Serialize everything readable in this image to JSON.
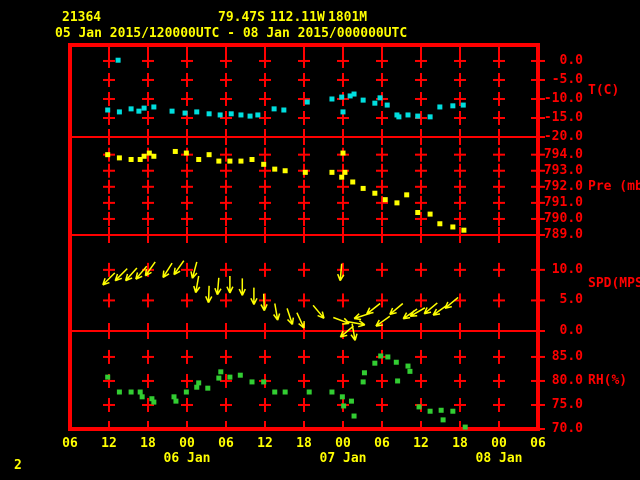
{
  "header": {
    "station_id": "21364",
    "latitude": "79.47S",
    "longitude": "112.11W",
    "elevation": "1801M",
    "time_range": "05 Jan 2015/120000UTC - 08 Jan 2015/000000UTC"
  },
  "page_number": "2",
  "colors": {
    "background": "#000000",
    "frame": "#ff0000",
    "axis_text": "#ff0000",
    "header_text": "#ffff00",
    "temperature": "#00dede",
    "pressure": "#ffff00",
    "wind": "#ffff00",
    "humidity": "#32cd32"
  },
  "chart_data": {
    "type": "scatter",
    "title": "Station time series 05 Jan 2015 12UTC - 08 Jan 2015 00UTC",
    "x_axis": {
      "span_hours": 72,
      "tick_interval_hours": 6,
      "hour_tick_labels": [
        "06",
        "12",
        "18",
        "00",
        "06",
        "12",
        "18",
        "00",
        "06",
        "12",
        "18",
        "00",
        "06"
      ],
      "day_labels": [
        {
          "text": "06 Jan",
          "tick": 3
        },
        {
          "text": "07 Jan",
          "tick": 7
        },
        {
          "text": "08 Jan",
          "tick": 11
        }
      ]
    },
    "panels": [
      {
        "id": "temperature",
        "unit_label": "T(C)",
        "marker_color": "#00dede",
        "tick_values": [
          0,
          -5,
          -10,
          -15,
          -20
        ],
        "tick_labels": [
          "0.0",
          "-5.0",
          "-10.0",
          "-15.0",
          "-20.0"
        ],
        "value_top": 4.2,
        "value_bottom": -20,
        "points": [
          [
            5.8,
            -12.9
          ],
          [
            7.4,
            0.2
          ],
          [
            7.6,
            -13.4
          ],
          [
            9.4,
            -12.6
          ],
          [
            10.6,
            -13.2
          ],
          [
            11.4,
            -12.4
          ],
          [
            12.9,
            -12.1
          ],
          [
            15.7,
            -13.2
          ],
          [
            17.7,
            -13.7
          ],
          [
            19.5,
            -13.4
          ],
          [
            21.4,
            -13.9
          ],
          [
            23.1,
            -14.2
          ],
          [
            24.8,
            -13.9
          ],
          [
            26.3,
            -14.2
          ],
          [
            27.7,
            -14.5
          ],
          [
            28.9,
            -14.2
          ],
          [
            31.4,
            -12.6
          ],
          [
            32.9,
            -12.9
          ],
          [
            36.5,
            -10.8
          ],
          [
            40.3,
            -10.0
          ],
          [
            41.8,
            -9.5
          ],
          [
            42.0,
            -13.4
          ],
          [
            43.1,
            -9.2
          ],
          [
            43.7,
            -8.7
          ],
          [
            45.1,
            -10.3
          ],
          [
            46.9,
            -11.1
          ],
          [
            47.7,
            -9.7
          ],
          [
            48.8,
            -11.6
          ],
          [
            50.3,
            -14.2
          ],
          [
            50.6,
            -14.7
          ],
          [
            52.0,
            -14.2
          ],
          [
            53.5,
            -14.5
          ],
          [
            55.4,
            -14.7
          ],
          [
            56.9,
            -12.1
          ],
          [
            58.9,
            -11.8
          ],
          [
            60.5,
            -11.6
          ]
        ]
      },
      {
        "id": "pressure",
        "unit_label": "Pre (mb)",
        "marker_color": "#ffff00",
        "tick_values": [
          794,
          793,
          792,
          791,
          790,
          789
        ],
        "tick_labels": [
          "794.0",
          "793.0",
          "792.0",
          "791.0",
          "790.0",
          "789.0"
        ],
        "value_top": 795.1,
        "value_bottom": 789,
        "points": [
          [
            5.8,
            794.0
          ],
          [
            7.6,
            793.8
          ],
          [
            9.4,
            793.7
          ],
          [
            10.8,
            793.7
          ],
          [
            11.4,
            793.9
          ],
          [
            12.2,
            794.1
          ],
          [
            12.9,
            793.9
          ],
          [
            16.2,
            794.2
          ],
          [
            17.9,
            794.1
          ],
          [
            19.8,
            793.7
          ],
          [
            21.4,
            794.0
          ],
          [
            22.9,
            793.6
          ],
          [
            24.6,
            793.6
          ],
          [
            26.3,
            793.6
          ],
          [
            28.0,
            793.7
          ],
          [
            29.8,
            793.4
          ],
          [
            31.5,
            793.1
          ],
          [
            33.1,
            793.0
          ],
          [
            36.2,
            792.9
          ],
          [
            40.3,
            792.9
          ],
          [
            41.8,
            792.6
          ],
          [
            42.0,
            794.1
          ],
          [
            42.3,
            792.9
          ],
          [
            43.5,
            792.3
          ],
          [
            45.1,
            791.9
          ],
          [
            46.9,
            791.6
          ],
          [
            48.5,
            791.2
          ],
          [
            50.3,
            791.0
          ],
          [
            51.8,
            791.5
          ],
          [
            53.5,
            790.4
          ],
          [
            55.4,
            790.3
          ],
          [
            56.9,
            789.7
          ],
          [
            58.9,
            789.5
          ],
          [
            60.6,
            789.3
          ]
        ]
      },
      {
        "id": "wind_speed",
        "unit_label": "SPD(MPS)",
        "marker_color": "#ffff00",
        "tick_values": [
          10,
          5,
          0
        ],
        "tick_labels": [
          "10.0",
          "5.0",
          "0.0"
        ],
        "value_top": 15.7,
        "value_bottom": 0,
        "barbs": [
          [
            6.9,
            9.5,
            225
          ],
          [
            8.8,
            10.2,
            225
          ],
          [
            10.3,
            10.3,
            222
          ],
          [
            11.8,
            10.6,
            220
          ],
          [
            13.1,
            11.3,
            215
          ],
          [
            15.7,
            11.1,
            212
          ],
          [
            17.5,
            11.5,
            215
          ],
          [
            19.5,
            11.3,
            195
          ],
          [
            19.8,
            9.0,
            190
          ],
          [
            21.4,
            7.4,
            182
          ],
          [
            22.9,
            8.7,
            185
          ],
          [
            24.6,
            9.0,
            180
          ],
          [
            26.5,
            8.6,
            180
          ],
          [
            28.3,
            7.1,
            180
          ],
          [
            29.8,
            6.1,
            178
          ],
          [
            31.5,
            4.5,
            170
          ],
          [
            33.4,
            3.7,
            162
          ],
          [
            34.9,
            3.0,
            155
          ],
          [
            37.4,
            4.2,
            140
          ],
          [
            40.5,
            2.2,
            110
          ],
          [
            41.8,
            11.0,
            185
          ],
          [
            42.8,
            1.5,
            100
          ],
          [
            43.4,
            1.2,
            170
          ],
          [
            43.6,
            0.8,
            230
          ],
          [
            46.2,
            2.9,
            252
          ],
          [
            47.7,
            4.5,
            232
          ],
          [
            49.2,
            2.4,
            235
          ],
          [
            51.2,
            4.5,
            230
          ],
          [
            53.4,
            3.6,
            235
          ],
          [
            54.6,
            3.8,
            240
          ],
          [
            56.5,
            4.6,
            230
          ],
          [
            58.0,
            4.2,
            235
          ],
          [
            59.7,
            5.5,
            230
          ]
        ]
      },
      {
        "id": "relative_humidity",
        "unit_label": "RH(%)",
        "marker_color": "#32cd32",
        "tick_values": [
          85,
          80,
          75,
          70
        ],
        "tick_labels": [
          "85.0",
          "80.0",
          "75.0",
          "70.0"
        ],
        "value_top": 90.4,
        "value_bottom": 70,
        "points": [
          [
            5.8,
            80.8
          ],
          [
            7.6,
            77.7
          ],
          [
            9.4,
            77.7
          ],
          [
            10.8,
            77.7
          ],
          [
            11.1,
            76.7
          ],
          [
            12.6,
            76.3
          ],
          [
            12.9,
            75.6
          ],
          [
            16.0,
            76.7
          ],
          [
            16.3,
            75.8
          ],
          [
            17.9,
            77.7
          ],
          [
            19.5,
            78.7
          ],
          [
            19.8,
            79.6
          ],
          [
            21.2,
            78.5
          ],
          [
            22.9,
            80.6
          ],
          [
            23.2,
            81.9
          ],
          [
            24.6,
            80.8
          ],
          [
            26.2,
            81.2
          ],
          [
            28.0,
            79.8
          ],
          [
            29.8,
            79.8
          ],
          [
            31.5,
            77.7
          ],
          [
            33.1,
            77.7
          ],
          [
            36.8,
            77.7
          ],
          [
            40.3,
            77.7
          ],
          [
            41.9,
            76.7
          ],
          [
            42.1,
            74.8
          ],
          [
            43.3,
            75.8
          ],
          [
            43.7,
            72.7
          ],
          [
            45.1,
            79.8
          ],
          [
            45.3,
            81.7
          ],
          [
            46.9,
            83.7
          ],
          [
            47.8,
            85.2
          ],
          [
            48.9,
            85.0
          ],
          [
            50.2,
            83.9
          ],
          [
            50.4,
            80.0
          ],
          [
            52.0,
            83.1
          ],
          [
            52.3,
            82.0
          ],
          [
            53.7,
            74.6
          ],
          [
            55.4,
            73.7
          ],
          [
            57.1,
            73.9
          ],
          [
            57.4,
            71.9
          ],
          [
            58.9,
            73.7
          ],
          [
            60.8,
            70.4
          ]
        ]
      }
    ]
  }
}
